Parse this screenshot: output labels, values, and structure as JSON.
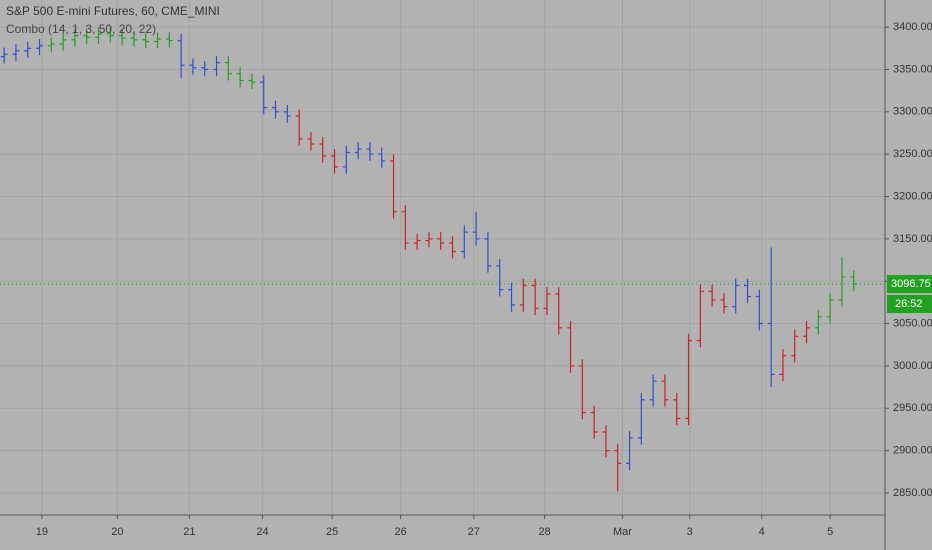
{
  "chart_data": {
    "type": "ohlc",
    "title": "S&P 500 E-mini Futures, 60, CME_MINI",
    "subtitle": "Combo (14, 1, 3, 50, 20, 22)",
    "last_price": 3096.75,
    "countdown": "26:52",
    "last_price_color": "#22a022",
    "background": "#b2b2b2",
    "grid": true,
    "grid_color": "#a2a2a2",
    "xlim": [
      -0.35,
      74.65
    ],
    "ylim": [
      2824,
      3432
    ],
    "xticks": [
      {
        "value": 3.2,
        "label": "19"
      },
      {
        "value": 9.6,
        "label": "20"
      },
      {
        "value": 15.7,
        "label": "21"
      },
      {
        "value": 21.9,
        "label": "24"
      },
      {
        "value": 27.8,
        "label": "25"
      },
      {
        "value": 33.6,
        "label": "26"
      },
      {
        "value": 39.8,
        "label": "27"
      },
      {
        "value": 45.8,
        "label": "28"
      },
      {
        "value": 52.4,
        "label": "Mar"
      },
      {
        "value": 58.1,
        "label": "3"
      },
      {
        "value": 64.2,
        "label": "4"
      },
      {
        "value": 70.0,
        "label": "5"
      }
    ],
    "yticks": [
      {
        "value": 2850,
        "label": "2850.00"
      },
      {
        "value": 2900,
        "label": "2900.00"
      },
      {
        "value": 2950,
        "label": "2950.00"
      },
      {
        "value": 3000,
        "label": "3000.00"
      },
      {
        "value": 3050,
        "label": "3050.00"
      },
      {
        "value": 3100,
        "label": "3100.00"
      },
      {
        "value": 3150,
        "label": "3150.00"
      },
      {
        "value": 3200,
        "label": "3200.00"
      },
      {
        "value": 3250,
        "label": "3250.00"
      },
      {
        "value": 3300,
        "label": "3300.00"
      },
      {
        "value": 3350,
        "label": "3350.00"
      },
      {
        "value": 3400,
        "label": "3400.00"
      }
    ],
    "open": [
      3365,
      3368,
      3372,
      3375,
      3378,
      3380,
      3385,
      3390,
      3388,
      3392,
      3390,
      3387,
      3385,
      3383,
      3386,
      3384,
      3355,
      3352,
      3350,
      3358,
      3345,
      3337,
      3335,
      3305,
      3300,
      3295,
      3268,
      3262,
      3248,
      3235,
      3252,
      3256,
      3250,
      3242,
      3182,
      3145,
      3148,
      3150,
      3145,
      3135,
      3158,
      3150,
      3118,
      3090,
      3072,
      3095,
      3068,
      3085,
      3045,
      3000,
      2945,
      2922,
      2900,
      2885,
      2915,
      2960,
      2982,
      2960,
      2938,
      3030,
      3088,
      3078,
      3070,
      3095,
      3082,
      3050,
      2990,
      3012,
      3035,
      3045,
      3058,
      3078,
      3105
    ],
    "high": [
      3376,
      3380,
      3383,
      3386,
      3388,
      3393,
      3398,
      3398,
      3400,
      3400,
      3398,
      3395,
      3393,
      3394,
      3394,
      3392,
      3363,
      3360,
      3366,
      3366,
      3353,
      3345,
      3343,
      3313,
      3308,
      3303,
      3276,
      3270,
      3256,
      3260,
      3264,
      3264,
      3258,
      3250,
      3190,
      3156,
      3158,
      3158,
      3153,
      3166,
      3182,
      3158,
      3126,
      3098,
      3103,
      3103,
      3093,
      3093,
      3053,
      3008,
      2953,
      2930,
      2908,
      2923,
      2968,
      2990,
      2990,
      2968,
      3038,
      3096,
      3096,
      3086,
      3103,
      3103,
      3090,
      3140,
      3020,
      3043,
      3053,
      3066,
      3086,
      3128,
      3113
    ],
    "low": [
      3357,
      3360,
      3364,
      3367,
      3370,
      3372,
      3377,
      3380,
      3380,
      3382,
      3379,
      3377,
      3375,
      3375,
      3376,
      3340,
      3344,
      3342,
      3342,
      3337,
      3329,
      3327,
      3297,
      3292,
      3287,
      3260,
      3254,
      3240,
      3227,
      3227,
      3244,
      3242,
      3234,
      3174,
      3137,
      3137,
      3140,
      3137,
      3127,
      3127,
      3142,
      3110,
      3082,
      3064,
      3064,
      3060,
      3060,
      3037,
      2992,
      2937,
      2914,
      2892,
      2852,
      2877,
      2907,
      2952,
      2952,
      2930,
      2930,
      3022,
      3070,
      3062,
      3062,
      3074,
      3042,
      2975,
      2982,
      3004,
      3027,
      3037,
      3050,
      3070,
      3088
    ],
    "close": [
      3368,
      3372,
      3375,
      3378,
      3380,
      3385,
      3390,
      3388,
      3392,
      3390,
      3387,
      3385,
      3383,
      3386,
      3384,
      3355,
      3352,
      3350,
      3358,
      3345,
      3337,
      3335,
      3305,
      3300,
      3295,
      3268,
      3262,
      3248,
      3235,
      3252,
      3256,
      3250,
      3242,
      3182,
      3145,
      3148,
      3150,
      3145,
      3135,
      3158,
      3150,
      3118,
      3090,
      3072,
      3095,
      3068,
      3085,
      3045,
      3000,
      2945,
      2922,
      2900,
      2885,
      2915,
      2960,
      2982,
      2960,
      2938,
      3030,
      3088,
      3078,
      3070,
      3095,
      3082,
      3050,
      2990,
      3012,
      3035,
      3045,
      3058,
      3078,
      3105,
      3096.75
    ],
    "colors": [
      "#2f4fd0",
      "#2f4fd0",
      "#2f4fd0",
      "#2f4fd0",
      "#22a022",
      "#22a022",
      "#22a022",
      "#22a022",
      "#22a022",
      "#22a022",
      "#22a022",
      "#22a022",
      "#22a022",
      "#22a022",
      "#22a022",
      "#2f4fd0",
      "#2f4fd0",
      "#2f4fd0",
      "#2f4fd0",
      "#22a022",
      "#22a022",
      "#22a022",
      "#2f4fd0",
      "#2f4fd0",
      "#2f4fd0",
      "#cc2020",
      "#cc2020",
      "#cc2020",
      "#cc2020",
      "#2f4fd0",
      "#2f4fd0",
      "#2f4fd0",
      "#2f4fd0",
      "#cc2020",
      "#cc2020",
      "#cc2020",
      "#cc2020",
      "#cc2020",
      "#cc2020",
      "#2f4fd0",
      "#2f4fd0",
      "#2f4fd0",
      "#2f4fd0",
      "#2f4fd0",
      "#cc2020",
      "#cc2020",
      "#cc2020",
      "#cc2020",
      "#cc2020",
      "#cc2020",
      "#cc2020",
      "#cc2020",
      "#cc2020",
      "#2f4fd0",
      "#2f4fd0",
      "#2f4fd0",
      "#cc2020",
      "#cc2020",
      "#cc2020",
      "#cc2020",
      "#cc2020",
      "#cc2020",
      "#2f4fd0",
      "#2f4fd0",
      "#2f4fd0",
      "#2f4fd0",
      "#cc2020",
      "#cc2020",
      "#cc2020",
      "#22a022",
      "#22a022",
      "#22a022",
      "#22a022"
    ]
  }
}
